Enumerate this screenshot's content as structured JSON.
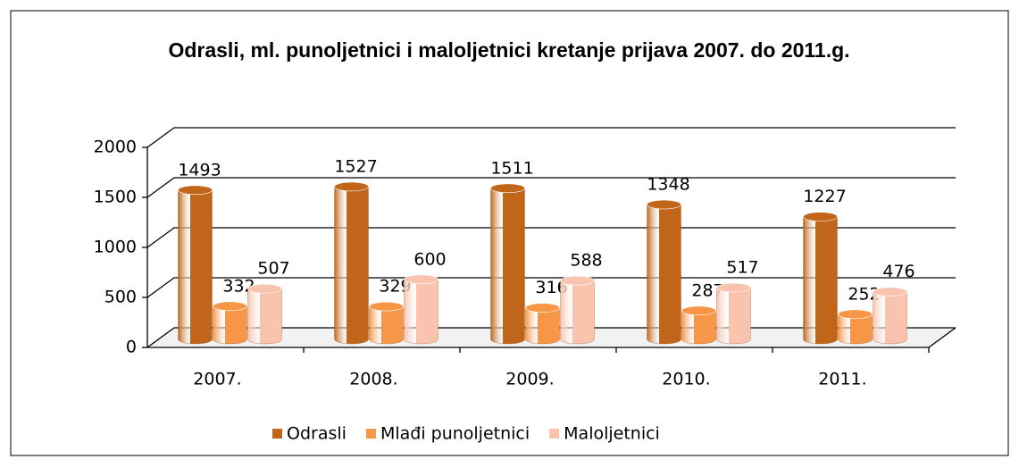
{
  "chart_data": {
    "type": "bar3d",
    "title": "Odrasli, ml. punoljetnici i maloljetnici kretanje prijava 2007. do 2011.g.",
    "categories": [
      "2007.",
      "2008.",
      "2009.",
      "2010.",
      "2011."
    ],
    "series": [
      {
        "name": "Odrasli",
        "color": "#c0651a",
        "values": [
          1493,
          1527,
          1511,
          1348,
          1227
        ]
      },
      {
        "name": "Mlađi punoljetnici",
        "color": "#f79646",
        "values": [
          332,
          329,
          316,
          287,
          252
        ]
      },
      {
        "name": "Maloljetnici",
        "color": "#f9c3ae",
        "values": [
          507,
          600,
          588,
          517,
          476
        ]
      }
    ],
    "ylim": [
      0,
      2000
    ],
    "yticks": [
      0,
      500,
      1000,
      1500,
      2000
    ],
    "grid": true,
    "legend": "bottom"
  }
}
